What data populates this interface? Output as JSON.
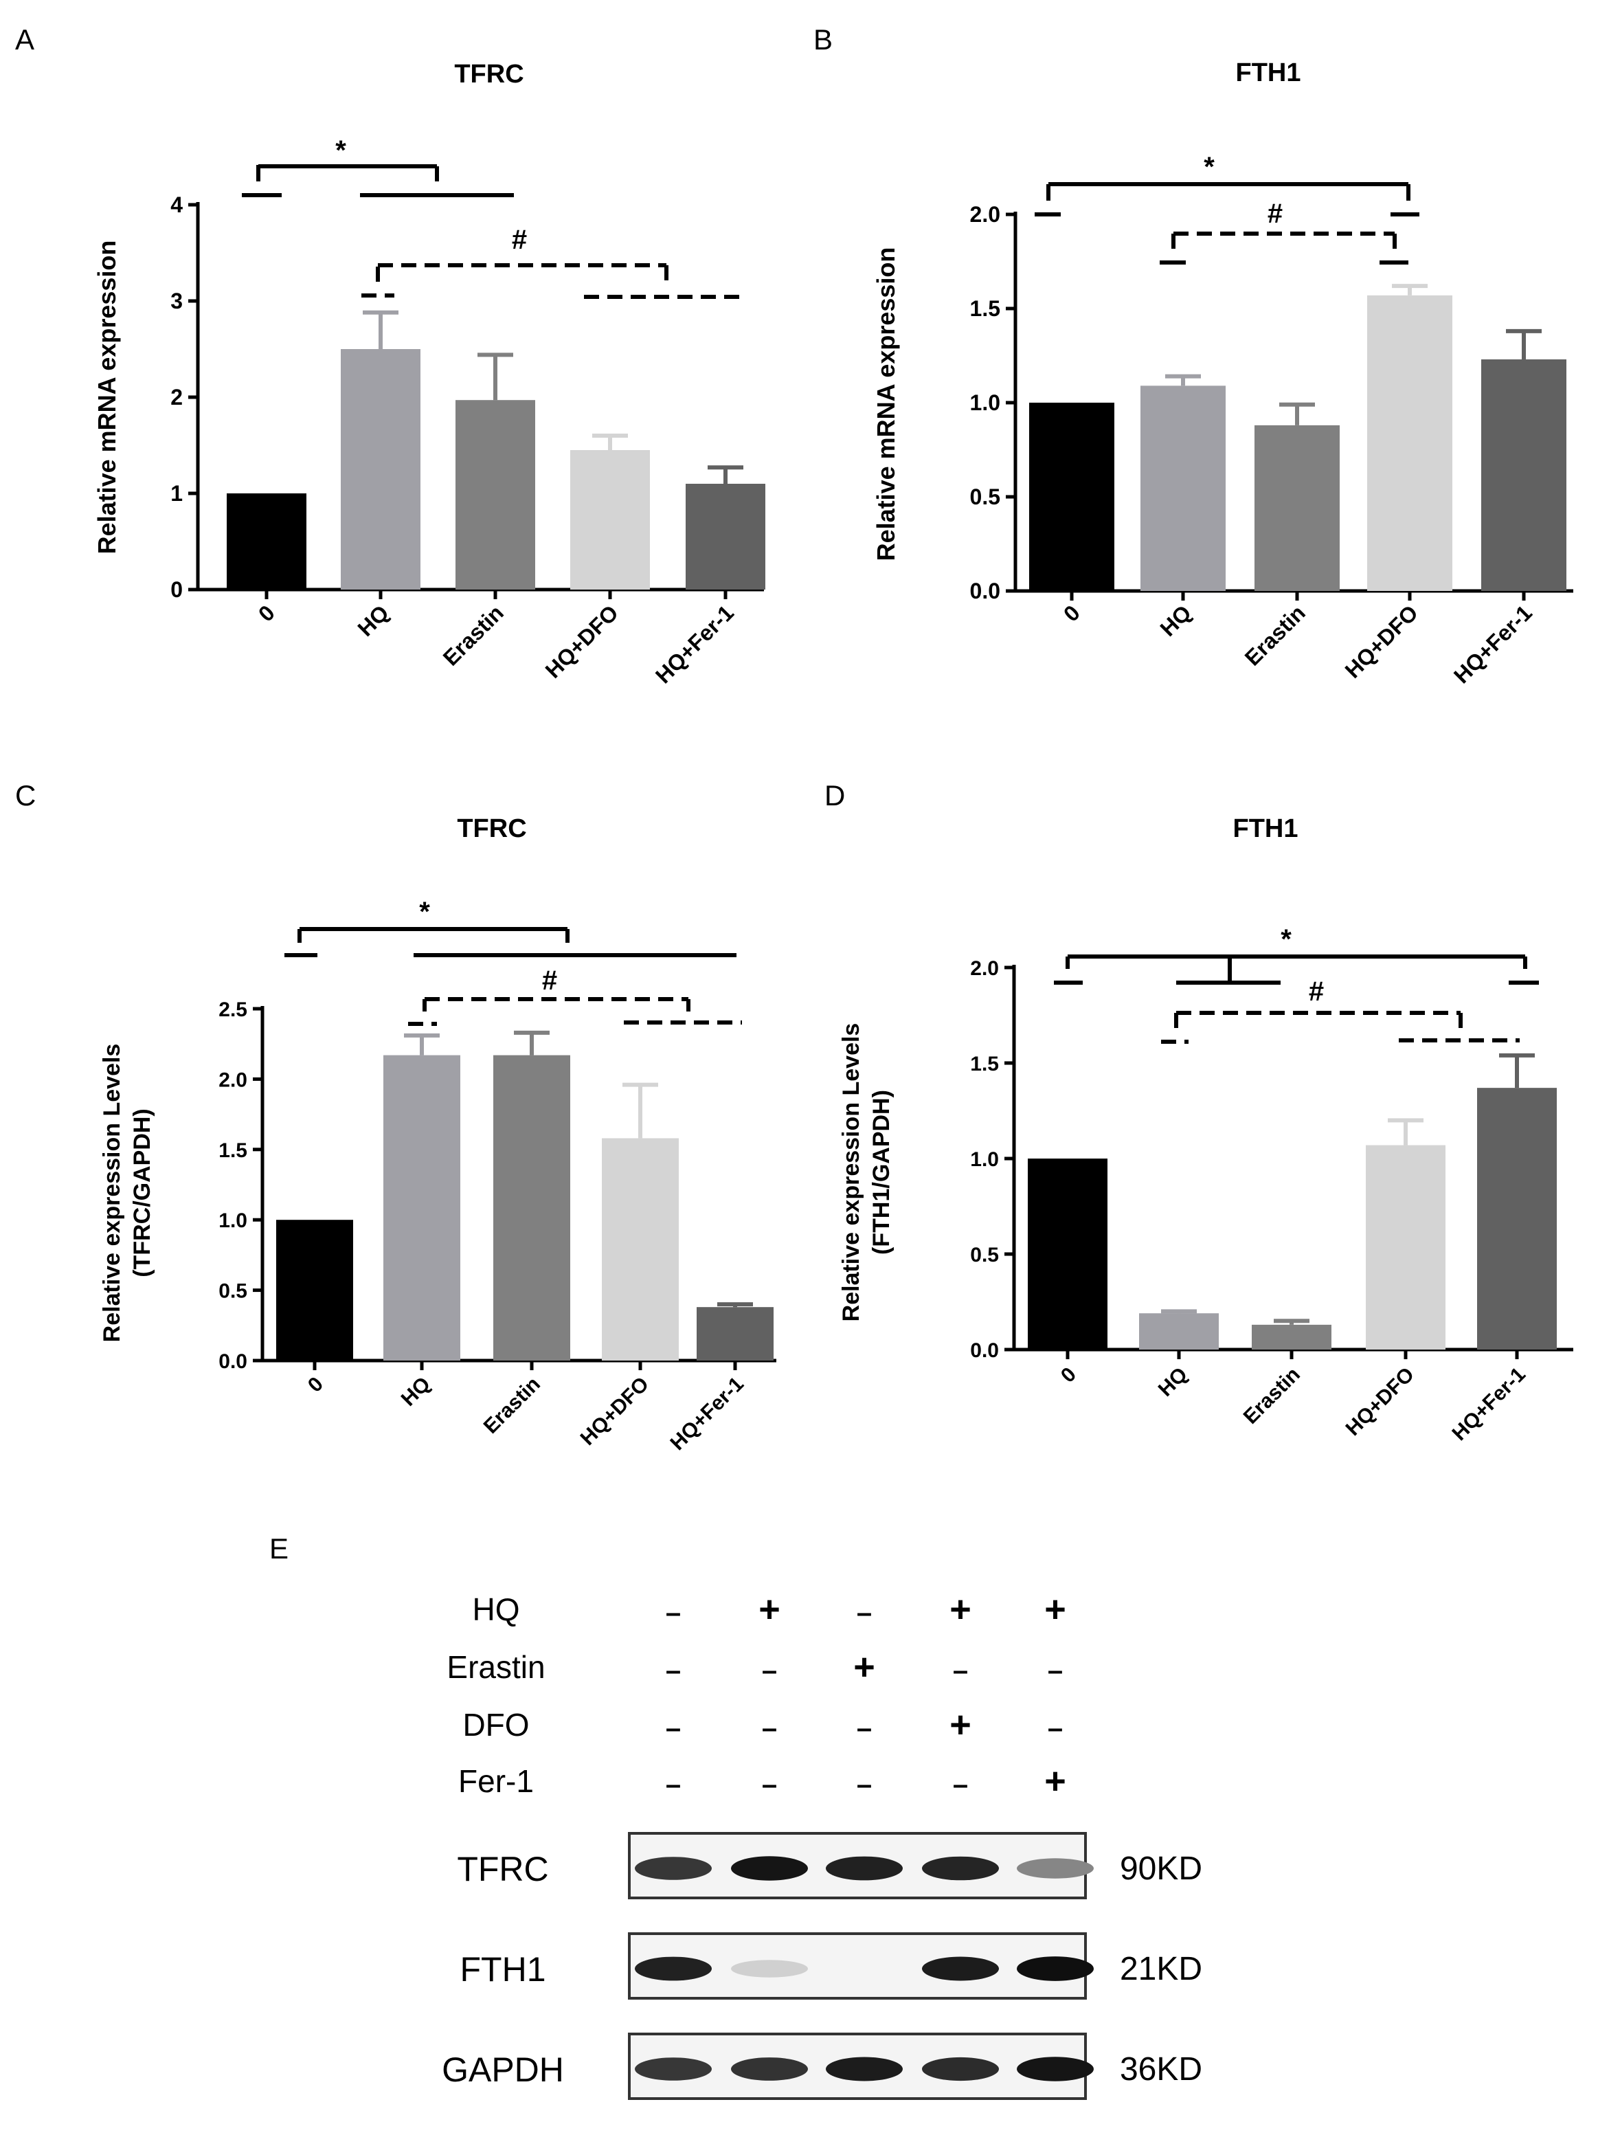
{
  "panel_labels": {
    "a": "A",
    "b": "B",
    "c": "C",
    "d": "D",
    "e": "E"
  },
  "colors": {
    "bar0": "#000000",
    "bar1": "#a0a0a6",
    "bar2": "#808080",
    "bar3": "#d4d4d4",
    "bar4": "#616161",
    "ink": "#000000"
  },
  "chart_data": [
    {
      "id": "A",
      "type": "bar",
      "title": "TFRC",
      "ylabel": "Relative mRNA expression",
      "categories": [
        "0",
        "HQ",
        "Erastin",
        "HQ+DFO",
        "HQ+Fer-1"
      ],
      "values": [
        1.0,
        2.5,
        1.97,
        1.45,
        1.1
      ],
      "errors": [
        0,
        0.38,
        0.47,
        0.15,
        0.17
      ],
      "ylim": [
        0,
        4
      ],
      "ticks": [
        0,
        1,
        2,
        3,
        4
      ],
      "tick_labels": [
        "0",
        "1",
        "2",
        "3",
        "4"
      ],
      "sig_star": "*",
      "sig_hash": "#"
    },
    {
      "id": "B",
      "type": "bar",
      "title": "FTH1",
      "ylabel": "Relative mRNA expression",
      "categories": [
        "0",
        "HQ",
        "Erastin",
        "HQ+DFO",
        "HQ+Fer-1"
      ],
      "values": [
        1.0,
        1.09,
        0.88,
        1.57,
        1.23
      ],
      "errors": [
        0,
        0.05,
        0.11,
        0.05,
        0.15
      ],
      "ylim": [
        0,
        2
      ],
      "ticks": [
        0,
        0.5,
        1,
        1.5,
        2
      ],
      "tick_labels": [
        "0.0",
        "0.5",
        "1.0",
        "1.5",
        "2.0"
      ],
      "sig_star": "*",
      "sig_hash": "#"
    },
    {
      "id": "C",
      "type": "bar",
      "title": "TFRC",
      "ylabel": "Relative expression Levels",
      "ylabel2": "(TFRC/GAPDH)",
      "categories": [
        "0",
        "HQ",
        "Erastin",
        "HQ+DFO",
        "HQ+Fer-1"
      ],
      "values": [
        1.0,
        2.17,
        2.17,
        1.58,
        0.38
      ],
      "errors": [
        0,
        0.14,
        0.16,
        0.38,
        0.02
      ],
      "ylim": [
        0,
        2.5
      ],
      "ticks": [
        0,
        0.5,
        1,
        1.5,
        2,
        2.5
      ],
      "tick_labels": [
        "0.0",
        "0.5",
        "1.0",
        "1.5",
        "2.0",
        "2.5"
      ],
      "sig_star": "*",
      "sig_hash": "#"
    },
    {
      "id": "D",
      "type": "bar",
      "title": "FTH1",
      "ylabel": "Relative expression Levels",
      "ylabel2": "(FTH1/GAPDH)",
      "categories": [
        "0",
        "HQ",
        "Erastin",
        "HQ+DFO",
        "HQ+Fer-1"
      ],
      "values": [
        1.0,
        0.19,
        0.13,
        1.07,
        1.37
      ],
      "errors": [
        0,
        0.01,
        0.02,
        0.13,
        0.17
      ],
      "ylim": [
        0,
        2
      ],
      "ticks": [
        0,
        0.5,
        1,
        1.5,
        2
      ],
      "tick_labels": [
        "0.0",
        "0.5",
        "1.0",
        "1.5",
        "2.0"
      ],
      "sig_star": "*",
      "sig_hash": "#"
    }
  ],
  "western_blot": {
    "treatments": [
      {
        "name": "HQ",
        "marks": [
          "–",
          "+",
          "–",
          "+",
          "+"
        ]
      },
      {
        "name": "Erastin",
        "marks": [
          "–",
          "–",
          "+",
          "–",
          "–"
        ]
      },
      {
        "name": "DFO",
        "marks": [
          "–",
          "–",
          "–",
          "+",
          "–"
        ]
      },
      {
        "name": "Fer-1",
        "marks": [
          "–",
          "–",
          "–",
          "–",
          "+"
        ]
      }
    ],
    "bands": [
      {
        "protein": "TFRC",
        "size": "90KD",
        "intensity": [
          0.8,
          0.95,
          0.9,
          0.88,
          0.45
        ]
      },
      {
        "protein": "FTH1",
        "size": "21KD",
        "intensity": [
          0.9,
          0.12,
          0.0,
          0.92,
          0.98
        ]
      },
      {
        "protein": "GAPDH",
        "size": "36KD",
        "intensity": [
          0.8,
          0.82,
          0.92,
          0.85,
          0.95
        ]
      }
    ]
  }
}
